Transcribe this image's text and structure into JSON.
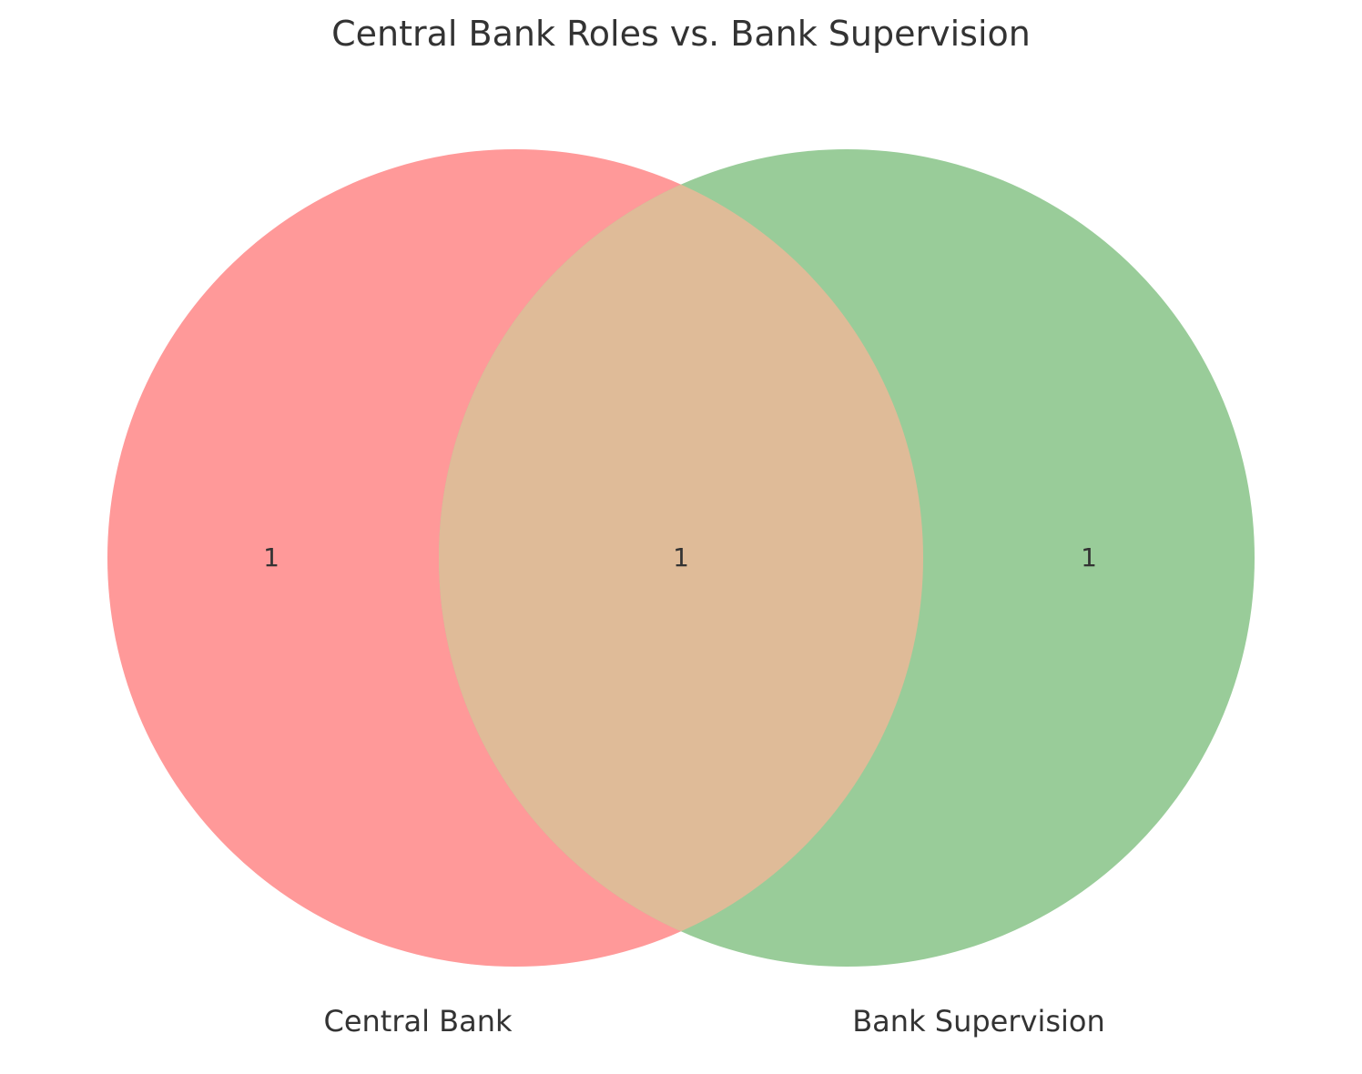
{
  "title": "Central Bank Roles vs. Bank Supervision",
  "colors": {
    "background": "#ffffff",
    "left_only": "#ff9999",
    "right_only": "#99cc99",
    "overlap": "#dfbb98",
    "text": "#333333"
  },
  "chart_data": {
    "type": "venn",
    "title": "Central Bank Roles vs. Bank Supervision",
    "sets": [
      {
        "name": "Central Bank",
        "color": "#ff9999"
      },
      {
        "name": "Bank Supervision",
        "color": "#99cc99"
      }
    ],
    "regions": {
      "central_bank_only": "1",
      "intersection": "1",
      "bank_supervision_only": "1"
    }
  }
}
